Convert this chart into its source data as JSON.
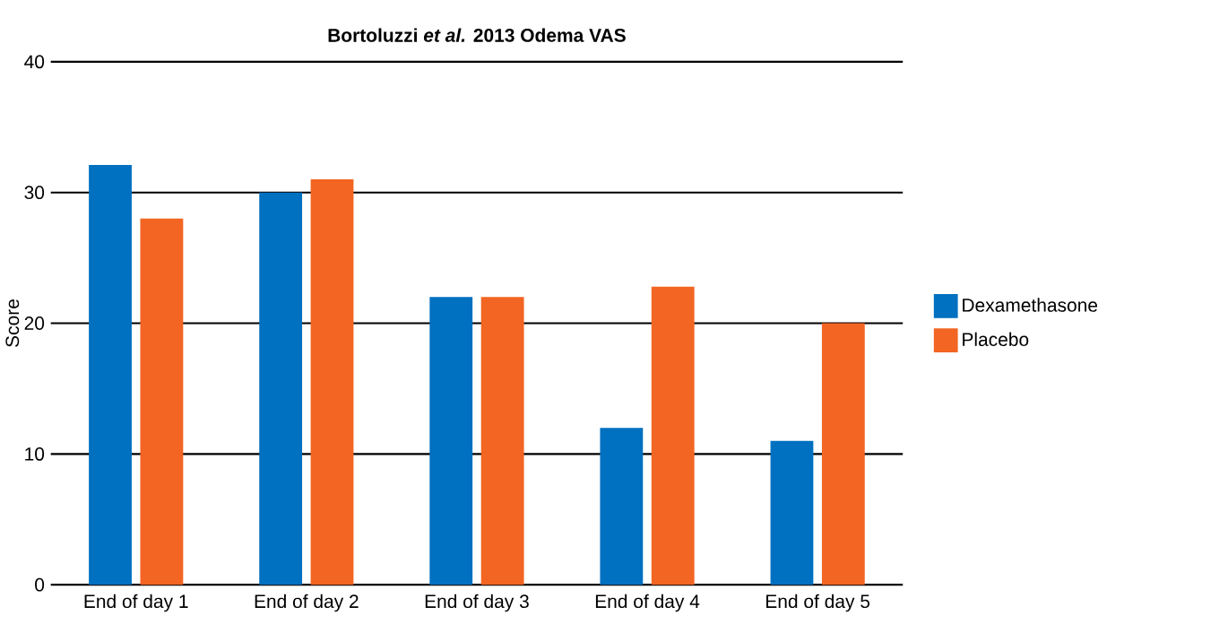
{
  "chart_data": {
    "type": "bar",
    "title": "Bortoluzzi *et al.* 2013 Odema VAS",
    "ylabel": "Score",
    "categories": [
      "End of day 1",
      "End of day 2",
      "End of day 3",
      "End of day 4",
      "End of day 5"
    ],
    "series": [
      {
        "name": "Dexamethasone",
        "color": "#0070c0",
        "values": [
          32.1,
          30,
          22,
          12,
          11
        ]
      },
      {
        "name": "Placebo",
        "color": "#f26522",
        "values": [
          28,
          31,
          22,
          22.8,
          20
        ]
      }
    ],
    "ylim": [
      0,
      40
    ],
    "yticks": [
      0,
      10,
      20,
      30,
      40
    ],
    "grid": "y",
    "legend": "right"
  }
}
